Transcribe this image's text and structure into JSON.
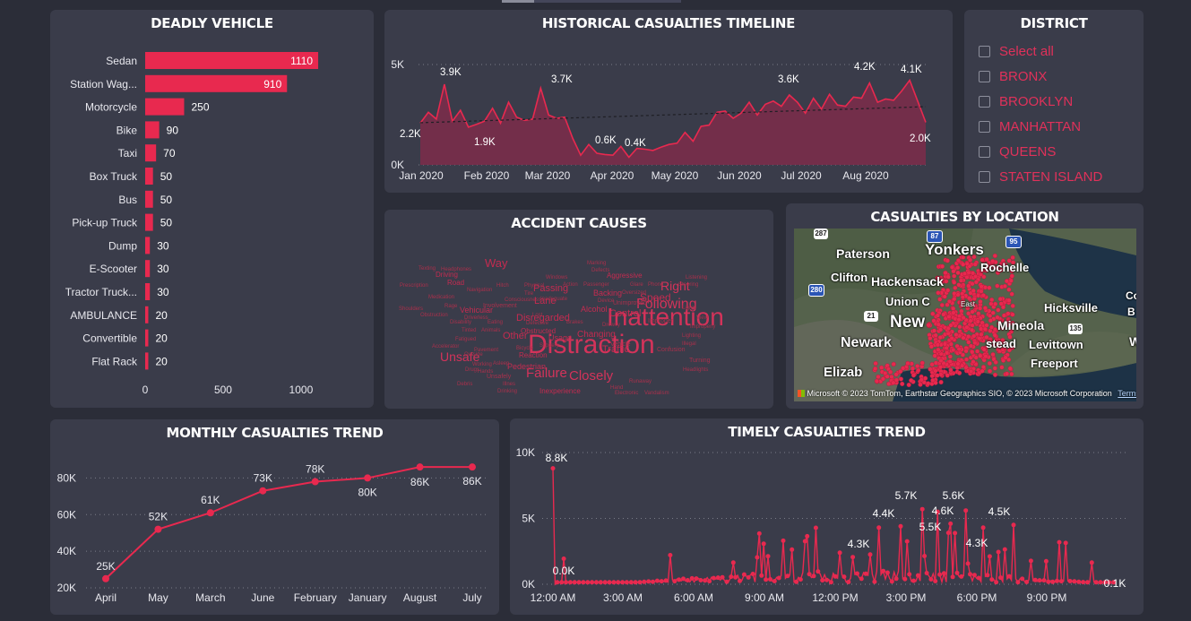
{
  "tabs": {
    "active_index": 0
  },
  "deadly_vehicle": {
    "title": "DEADLY VEHICLE",
    "chart_data": {
      "type": "bar",
      "orientation": "horizontal",
      "categories": [
        "Sedan",
        "Station Wag...",
        "Motorcycle",
        "Bike",
        "Taxi",
        "Box Truck",
        "Bus",
        "Pick-up Truck",
        "Dump",
        "E-Scooter",
        "Tractor Truck...",
        "AMBULANCE",
        "Convertible",
        "Flat Rack"
      ],
      "values": [
        1110,
        910,
        250,
        90,
        70,
        50,
        50,
        50,
        30,
        30,
        30,
        20,
        20,
        20
      ],
      "xticks": [
        "0",
        "500",
        "1000"
      ],
      "xlim": [
        0,
        1150
      ],
      "color": "#e8294f"
    }
  },
  "timeline": {
    "title": "HISTORICAL CASUALTIES TIMELINE",
    "chart_data": {
      "type": "area",
      "x_ticks": [
        "Jan 2020",
        "Feb 2020",
        "Mar 2020",
        "Apr 2020",
        "May 2020",
        "Jun 2020",
        "Jul 2020",
        "Aug 2020"
      ],
      "y_ticks": [
        "5K",
        "0K"
      ],
      "ylim": [
        0,
        5000
      ],
      "series": [
        {
          "values": [
            2200,
            2500,
            2400,
            3900,
            2300,
            2600,
            2000,
            1900,
            2300,
            2700,
            2200,
            3000,
            2500,
            2100,
            2400,
            3700,
            2600,
            2200,
            2500,
            1200,
            600,
            900,
            700,
            400,
            600,
            800,
            500,
            700,
            900,
            600,
            1000,
            900,
            1200,
            1500,
            1300,
            1800,
            2100,
            2500,
            2800,
            2200,
            2700,
            3000,
            2600,
            2900,
            3300,
            2800,
            3600,
            3000,
            2700,
            3200,
            2900,
            3400,
            3100,
            2800,
            3500,
            3200,
            4200,
            3000,
            3400,
            3100,
            3800,
            4100,
            3300,
            2000
          ]
        }
      ],
      "annotations": [
        "3.9K",
        "2.2K",
        "1.9K",
        "3.7K",
        "0.6K",
        "0.4K",
        "3.6K",
        "4.2K",
        "4.1K",
        "2.0K"
      ],
      "trendline": true,
      "color": "#e8294f"
    }
  },
  "district": {
    "title": "DISTRICT",
    "items": [
      "Select all",
      "BRONX",
      "BROOKLYN",
      "MANHATTAN",
      "QUEENS",
      "STATEN ISLAND"
    ]
  },
  "accident_causes": {
    "title": "ACCIDENT CAUSES",
    "words": [
      {
        "t": "Distraction",
        "s": 30
      },
      {
        "t": "Inattention",
        "s": 28
      },
      {
        "t": "Failure",
        "s": 15
      },
      {
        "t": "Closely",
        "s": 15
      },
      {
        "t": "Unsafe",
        "s": 14
      },
      {
        "t": "Following",
        "s": 16
      },
      {
        "t": "Right",
        "s": 14
      },
      {
        "t": "Speed",
        "s": 12
      },
      {
        "t": "Way",
        "s": 13
      },
      {
        "t": "Passing",
        "s": 11
      },
      {
        "t": "Lane",
        "s": 11
      },
      {
        "t": "Disregarded",
        "s": 11
      },
      {
        "t": "Traffic",
        "s": 11
      },
      {
        "t": "Control",
        "s": 11
      },
      {
        "t": "Other",
        "s": 11
      },
      {
        "t": "Changing",
        "s": 10
      },
      {
        "t": "Vehicular",
        "s": 9
      },
      {
        "t": "Usage",
        "s": 9
      },
      {
        "t": "Alcohol",
        "s": 9
      },
      {
        "t": "Backing",
        "s": 9
      },
      {
        "t": "Aggressive",
        "s": 8
      },
      {
        "t": "Driving",
        "s": 8
      },
      {
        "t": "Road",
        "s": 8
      },
      {
        "t": "Pedestrian",
        "s": 9
      },
      {
        "t": "Inexperience",
        "s": 8
      },
      {
        "t": "Obstructed",
        "s": 8
      },
      {
        "t": "Reaction",
        "s": 8
      },
      {
        "t": "Unsafely",
        "s": 7
      },
      {
        "t": "Involvement",
        "s": 7
      },
      {
        "t": "Improper",
        "s": 7
      },
      {
        "t": "Unimproved",
        "s": 7
      },
      {
        "t": "Confusion",
        "s": 7
      },
      {
        "t": "Texting",
        "s": 6
      },
      {
        "t": "Headphones",
        "s": 6
      },
      {
        "t": "Prescription",
        "s": 6
      },
      {
        "t": "Navigation",
        "s": 6
      },
      {
        "t": "Medication",
        "s": 6
      },
      {
        "t": "Rage",
        "s": 6
      },
      {
        "t": "Shoulders",
        "s": 6
      },
      {
        "t": "Obstruction",
        "s": 6
      },
      {
        "t": "Disability",
        "s": 6
      },
      {
        "t": "Fatigued",
        "s": 6
      },
      {
        "t": "Accelerator",
        "s": 6
      },
      {
        "t": "Drowsy",
        "s": 6
      },
      {
        "t": "Marking",
        "s": 6
      },
      {
        "t": "Defects",
        "s": 6
      },
      {
        "t": "Windows",
        "s": 6
      },
      {
        "t": "Action",
        "s": 6
      },
      {
        "t": "Passenger",
        "s": 6
      },
      {
        "t": "Glare",
        "s": 6
      },
      {
        "t": "Phone",
        "s": 6
      },
      {
        "t": "Listening",
        "s": 6
      },
      {
        "t": "Steering",
        "s": 6
      },
      {
        "t": "Hitch",
        "s": 6
      },
      {
        "t": "Physical",
        "s": 6
      },
      {
        "t": "Tire",
        "s": 6
      },
      {
        "t": "Consciousness",
        "s": 6
      },
      {
        "t": "Inadequate",
        "s": 6
      },
      {
        "t": "Oversized",
        "s": 6
      },
      {
        "t": "Lost",
        "s": 6
      },
      {
        "t": "Eating",
        "s": 6
      },
      {
        "t": "Animals",
        "s": 6
      },
      {
        "t": "Tinted",
        "s": 6
      },
      {
        "t": "Pavement",
        "s": 6
      },
      {
        "t": "Bicycle",
        "s": 6
      },
      {
        "t": "Slippery",
        "s": 6
      },
      {
        "t": "Outside",
        "s": 6
      },
      {
        "t": "Working",
        "s": 6
      },
      {
        "t": "Asleep",
        "s": 6
      },
      {
        "t": "Hands",
        "s": 6
      },
      {
        "t": "Drugs",
        "s": 6
      },
      {
        "t": "Debris",
        "s": 6
      },
      {
        "t": "Drinking",
        "s": 6
      },
      {
        "t": "Illnes",
        "s": 6
      },
      {
        "t": "Defective",
        "s": 6
      },
      {
        "t": "Brakes",
        "s": 6
      },
      {
        "t": "Device",
        "s": 6
      },
      {
        "t": "Vehicle",
        "s": 7
      },
      {
        "t": "Illegal",
        "s": 6
      },
      {
        "t": "Lighting",
        "s": 6
      },
      {
        "t": "Headlights",
        "s": 6
      },
      {
        "t": "Turning",
        "s": 7
      },
      {
        "t": "Hand",
        "s": 6
      },
      {
        "t": "Runaway",
        "s": 6
      },
      {
        "t": "Electronic",
        "s": 6
      },
      {
        "t": "Vandalism",
        "s": 6
      },
      {
        "t": "View",
        "s": 6
      },
      {
        "t": "Improperly",
        "s": 6
      },
      {
        "t": "Lights",
        "s": 6
      },
      {
        "t": "Driverless",
        "s": 6
      }
    ]
  },
  "location": {
    "title": "CASUALTIES BY LOCATION",
    "places": [
      "Paterson",
      "Yonkers",
      "Rochelle",
      "Clifton",
      "Hackensack",
      "Hicksville",
      "Union C",
      "Com",
      "B",
      "New",
      "Mineola",
      "Newark",
      "stead",
      "Levittown",
      "W",
      "Elizab",
      "Freeport"
    ],
    "shields": [
      "287",
      "87",
      "95",
      "280",
      "21",
      "135",
      "East"
    ],
    "attribution": "Microsoft",
    "attribution_full": "© 2023 TomTom, Earthstar Geographics SIO, © 2023 Microsoft Corporation",
    "terms": "Terms"
  },
  "monthly": {
    "title": "MONTHLY CASUALTIES TREND",
    "chart_data": {
      "type": "line",
      "categories": [
        "April",
        "May",
        "March",
        "June",
        "February",
        "January",
        "August",
        "July"
      ],
      "values": [
        25000,
        52000,
        61000,
        73000,
        78000,
        80000,
        86000,
        86000
      ],
      "labels": [
        "25K",
        "52K",
        "61K",
        "73K",
        "78K",
        "80K",
        "86K",
        "86K"
      ],
      "y_ticks": [
        "80K",
        "60K",
        "40K",
        "20K"
      ],
      "ylim": [
        20000,
        90000
      ],
      "color": "#e8294f"
    }
  },
  "timely": {
    "title": "TIMELY CASUALTIES TREND",
    "chart_data": {
      "type": "line",
      "x_ticks": [
        "12:00 AM",
        "3:00 AM",
        "6:00 AM",
        "9:00 AM",
        "12:00 PM",
        "3:00 PM",
        "6:00 PM",
        "9:00 PM"
      ],
      "y_ticks": [
        "10K",
        "5K",
        "0K"
      ],
      "ylim": [
        0,
        10000
      ],
      "peaks": [
        {
          "label": "8.8K",
          "v": 8800
        },
        {
          "label": "0.0K",
          "v": 0
        },
        {
          "label": "4.3K",
          "v": 4300
        },
        {
          "label": "4.4K",
          "v": 4400
        },
        {
          "label": "5.7K",
          "v": 5700
        },
        {
          "label": "5.5K",
          "v": 5500
        },
        {
          "label": "4.6K",
          "v": 4600
        },
        {
          "label": "5.6K",
          "v": 5600
        },
        {
          "label": "4.3K",
          "v": 4300
        },
        {
          "label": "4.5K",
          "v": 4500
        },
        {
          "label": "0.1K",
          "v": 100
        }
      ],
      "color": "#e8294f"
    }
  }
}
